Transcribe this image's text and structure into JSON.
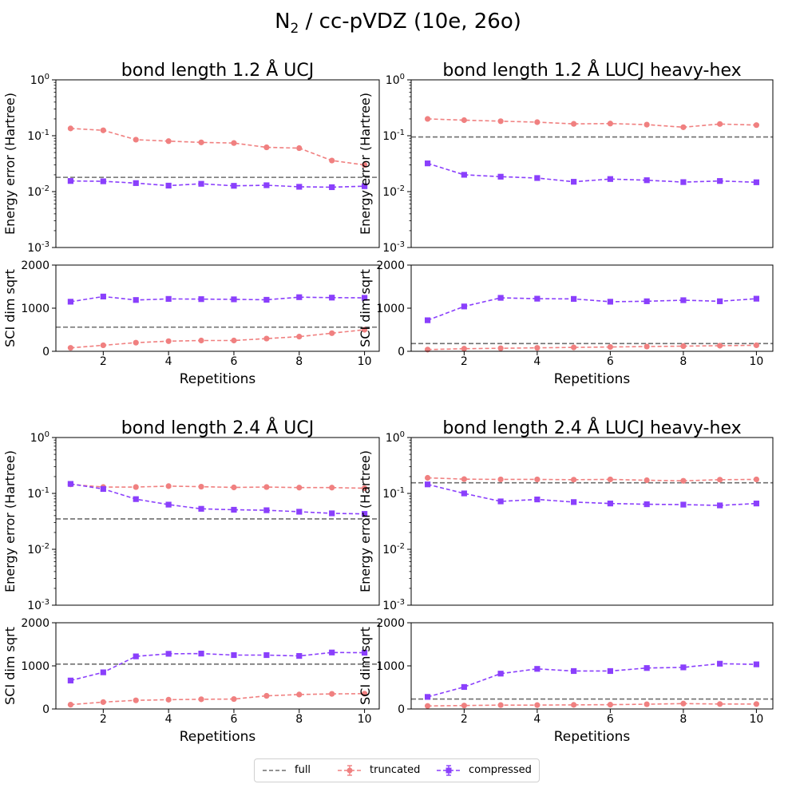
{
  "figure": {
    "title_main": "N",
    "title_sub": "2",
    "title_rest": " / cc-pVDZ (10e, 26o)"
  },
  "colors": {
    "full": "#6f6f6f",
    "truncated": "#f08080",
    "compressed": "#8a3ffc"
  },
  "legend": {
    "full": "full",
    "truncated": "truncated",
    "compressed": "compressed"
  },
  "chart_data": [
    {
      "type": "line",
      "title": "bond length 1.2 Å UCJ",
      "x": [
        1,
        2,
        3,
        4,
        5,
        6,
        7,
        8,
        9,
        10
      ],
      "xlabel": "Repetitions",
      "xticks": [
        "2",
        "4",
        "6",
        "8",
        "10"
      ],
      "energy": {
        "ylabel": "Energy error (Hartree)",
        "yscale": "log",
        "ylim": [
          0.001,
          1
        ],
        "full": 0.018,
        "series": [
          {
            "name": "truncated",
            "values": [
              0.135,
              0.125,
              0.085,
              0.08,
              0.076,
              0.074,
              0.062,
              0.06,
              0.036,
              0.03
            ]
          },
          {
            "name": "compressed",
            "values": [
              0.0155,
              0.0153,
              0.0142,
              0.0128,
              0.0138,
              0.0127,
              0.013,
              0.0122,
              0.012,
              0.0125
            ]
          }
        ]
      },
      "sci": {
        "ylabel": "SCI dim sqrt",
        "ylim": [
          0,
          2000
        ],
        "yticks": [
          "0",
          "1000",
          "2000"
        ],
        "full": 560,
        "series": [
          {
            "name": "truncated",
            "values": [
              80,
              140,
              200,
              235,
              250,
              250,
              295,
              340,
              420,
              500
            ]
          },
          {
            "name": "compressed",
            "values": [
              1150,
              1270,
              1190,
              1215,
              1210,
              1205,
              1195,
              1255,
              1245,
              1240
            ]
          }
        ]
      }
    },
    {
      "type": "line",
      "title": "bond length 1.2 Å LUCJ heavy-hex",
      "x": [
        1,
        2,
        3,
        4,
        5,
        6,
        7,
        8,
        9,
        10
      ],
      "xlabel": "Repetitions",
      "xticks": [
        "2",
        "4",
        "6",
        "8",
        "10"
      ],
      "energy": {
        "ylabel": "Energy error (Hartree)",
        "yscale": "log",
        "ylim": [
          0.001,
          1
        ],
        "full": 0.095,
        "series": [
          {
            "name": "truncated",
            "values": [
              0.2,
              0.19,
              0.182,
              0.175,
              0.163,
              0.165,
              0.158,
              0.142,
              0.162,
              0.155
            ]
          },
          {
            "name": "compressed",
            "values": [
              0.032,
              0.02,
              0.0185,
              0.0175,
              0.015,
              0.0168,
              0.016,
              0.0148,
              0.0155,
              0.0147
            ]
          }
        ]
      },
      "sci": {
        "ylabel": "SCI dim sqrt",
        "ylim": [
          0,
          2000
        ],
        "yticks": [
          "0",
          "1000",
          "2000"
        ],
        "full": 180,
        "series": [
          {
            "name": "truncated",
            "values": [
              40,
              60,
              70,
              80,
              90,
              100,
              110,
              120,
              130,
              140
            ]
          },
          {
            "name": "compressed",
            "values": [
              720,
              1040,
              1240,
              1220,
              1215,
              1150,
              1160,
              1185,
              1160,
              1220
            ]
          }
        ]
      }
    },
    {
      "type": "line",
      "title": "bond length 2.4 Å UCJ",
      "x": [
        1,
        2,
        3,
        4,
        5,
        6,
        7,
        8,
        9,
        10
      ],
      "xlabel": "Repetitions",
      "xticks": [
        "2",
        "4",
        "6",
        "8",
        "10"
      ],
      "energy": {
        "ylabel": "Energy error (Hartree)",
        "yscale": "log",
        "ylim": [
          0.001,
          1
        ],
        "full": 0.035,
        "series": [
          {
            "name": "truncated",
            "values": [
              0.145,
              0.13,
              0.13,
              0.135,
              0.132,
              0.128,
              0.13,
              0.127,
              0.127,
              0.124
            ]
          },
          {
            "name": "compressed",
            "values": [
              0.148,
              0.12,
              0.079,
              0.063,
              0.053,
              0.051,
              0.05,
              0.047,
              0.044,
              0.043
            ]
          }
        ]
      },
      "sci": {
        "ylabel": "SCI dim sqrt",
        "ylim": [
          0,
          2000
        ],
        "yticks": [
          "0",
          "1000",
          "2000"
        ],
        "full": 1040,
        "series": [
          {
            "name": "truncated",
            "values": [
              100,
              160,
              200,
              215,
              225,
              230,
              305,
              335,
              350,
              355
            ]
          },
          {
            "name": "compressed",
            "values": [
              660,
              850,
              1220,
              1280,
              1285,
              1250,
              1250,
              1230,
              1310,
              1305
            ]
          }
        ]
      }
    },
    {
      "type": "line",
      "title": "bond length 2.4 Å LUCJ heavy-hex",
      "x": [
        1,
        2,
        3,
        4,
        5,
        6,
        7,
        8,
        9,
        10
      ],
      "xlabel": "Repetitions",
      "xticks": [
        "2",
        "4",
        "6",
        "8",
        "10"
      ],
      "energy": {
        "ylabel": "Energy error (Hartree)",
        "yscale": "log",
        "ylim": [
          0.001,
          1
        ],
        "full": 0.155,
        "series": [
          {
            "name": "truncated",
            "values": [
              0.19,
              0.18,
              0.178,
              0.178,
              0.176,
              0.178,
              0.172,
              0.168,
              0.176,
              0.178
            ]
          },
          {
            "name": "compressed",
            "values": [
              0.145,
              0.1,
              0.072,
              0.078,
              0.07,
              0.066,
              0.064,
              0.063,
              0.061,
              0.066
            ]
          }
        ]
      },
      "sci": {
        "ylabel": "SCI dim sqrt",
        "ylim": [
          0,
          2000
        ],
        "yticks": [
          "0",
          "1000",
          "2000"
        ],
        "full": 230,
        "series": [
          {
            "name": "truncated",
            "values": [
              70,
              80,
              90,
              90,
              95,
              100,
              110,
              125,
              115,
              115
            ]
          },
          {
            "name": "compressed",
            "values": [
              280,
              510,
              820,
              930,
              880,
              880,
              950,
              965,
              1050,
              1035
            ]
          }
        ]
      }
    }
  ]
}
